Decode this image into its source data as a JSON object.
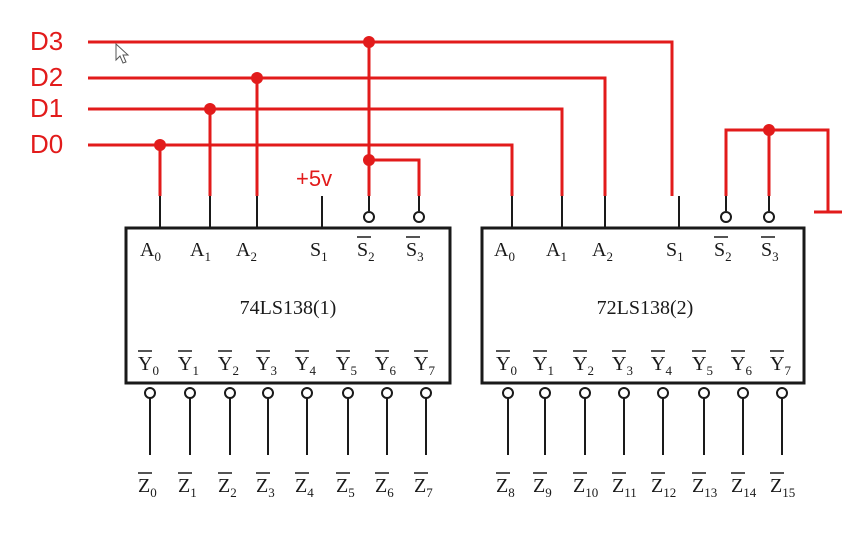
{
  "inputs": {
    "d3": "D3",
    "d2": "D2",
    "d1": "D1",
    "d0": "D0"
  },
  "supply": {
    "label": "+5v"
  },
  "chip1": {
    "name": "74LS138(1)",
    "pins_top": [
      "A0",
      "A1",
      "A2",
      "S1",
      "S2",
      "S3"
    ],
    "pins_bottom": [
      "Y0",
      "Y1",
      "Y2",
      "Y3",
      "Y4",
      "Y5",
      "Y6",
      "Y7"
    ]
  },
  "chip2": {
    "name": "72LS138(2)",
    "pins_top": [
      "A0",
      "A1",
      "A2",
      "S1",
      "S2",
      "S3"
    ],
    "pins_bottom": [
      "Y0",
      "Y1",
      "Y2",
      "Y3",
      "Y4",
      "Y5",
      "Y6",
      "Y7"
    ]
  },
  "outputs": [
    "Z0",
    "Z1",
    "Z2",
    "Z3",
    "Z4",
    "Z5",
    "Z6",
    "Z7",
    "Z8",
    "Z9",
    "Z10",
    "Z11",
    "Z12",
    "Z13",
    "Z14",
    "Z15"
  ],
  "colors": {
    "wire": "#e21b1b",
    "chip": "#1a1a1a",
    "background": "#ffffff"
  }
}
